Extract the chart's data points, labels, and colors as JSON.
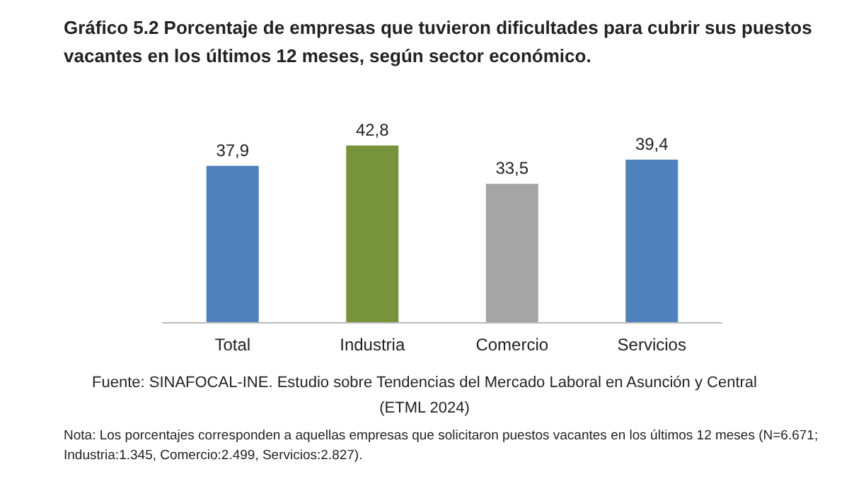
{
  "chart_data": {
    "type": "bar",
    "title": "Gráfico 5.2 Porcentaje de empresas que tuvieron dificultades para cubrir sus puestos vacantes en los últimos 12 meses, según sector económico.",
    "categories": [
      "Total",
      "Industria",
      "Comercio",
      "Servicios"
    ],
    "values": [
      37.9,
      42.8,
      33.5,
      39.4
    ],
    "colors": [
      "#4f81bd",
      "#77933c",
      "#a5a5a5",
      "#4f81bd"
    ],
    "value_labels": [
      "37,9",
      "42,8",
      "33,5",
      "39,4"
    ],
    "annotations": [
      "Fuente: SINAFOCAL-INE. Estudio sobre Tendencias del Mercado Laboral en Asunción y Central (ETML 2024)",
      "Nota: Los porcentajes corresponden a aquellas empresas que solicitaron puestos vacantes en los últimos 12 meses (N=6.671; Industria:1.345, Comercio:2.499, Servicios:2.827)."
    ]
  }
}
